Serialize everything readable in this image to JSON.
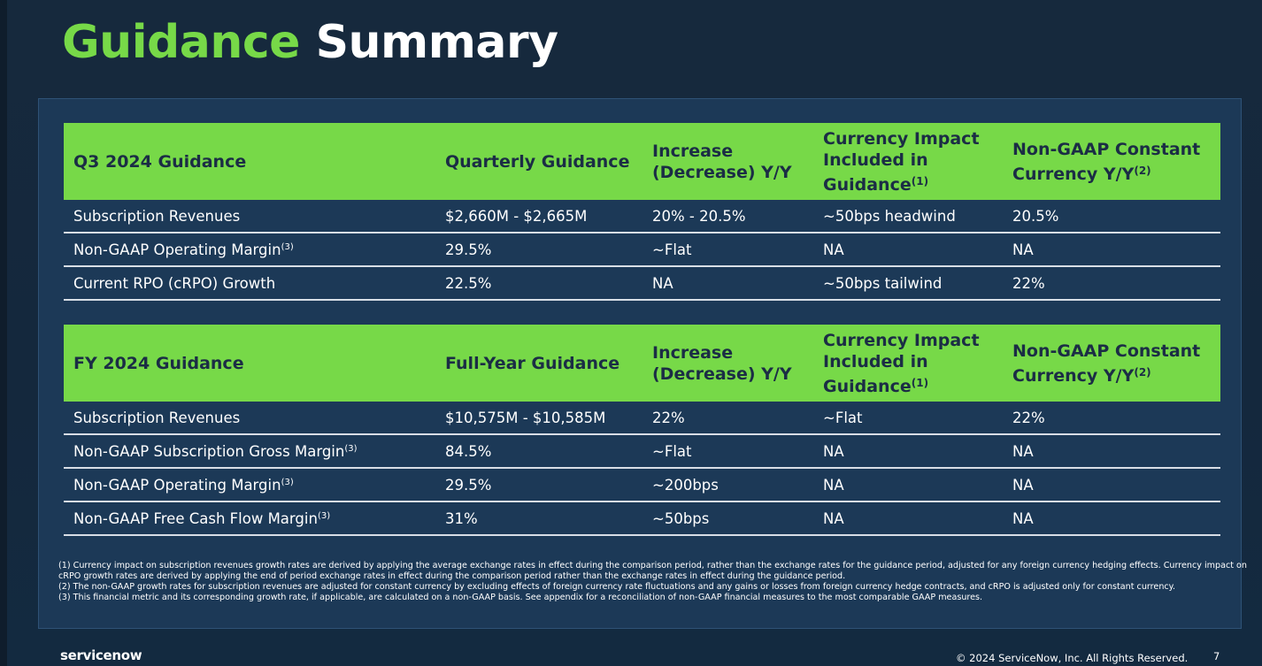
{
  "title": {
    "green": "Guidance",
    "white": "Summary"
  },
  "q3": {
    "headers": [
      {
        "text": "Q3 2024 Guidance",
        "sup": ""
      },
      {
        "text": "Quarterly Guidance",
        "sup": ""
      },
      {
        "text": "Increase (Decrease) Y/Y",
        "sup": ""
      },
      {
        "text": "Currency Impact Included in Guidance",
        "sup": "(1)"
      },
      {
        "text": "Non-GAAP Constant Currency Y/Y",
        "sup": "(2)"
      }
    ],
    "rows": [
      {
        "label": "Subscription Revenues",
        "sup": "",
        "cells": [
          "$2,660M - $2,665M",
          "20% - 20.5%",
          "~50bps headwind",
          "20.5%"
        ]
      },
      {
        "label": "Non-GAAP Operating Margin",
        "sup": "(3)",
        "cells": [
          "29.5%",
          "~Flat",
          "NA",
          "NA"
        ]
      },
      {
        "label": "Current RPO (cRPO) Growth",
        "sup": "",
        "cells": [
          "22.5%",
          "NA",
          "~50bps tailwind",
          "22%"
        ]
      }
    ]
  },
  "fy": {
    "headers": [
      {
        "text": "FY 2024 Guidance",
        "sup": ""
      },
      {
        "text": "Full-Year Guidance",
        "sup": ""
      },
      {
        "text": "Increase (Decrease) Y/Y",
        "sup": ""
      },
      {
        "text": "Currency Impact Included in Guidance",
        "sup": "(1)"
      },
      {
        "text": "Non-GAAP Constant Currency Y/Y",
        "sup": "(2)"
      }
    ],
    "rows": [
      {
        "label": "Subscription Revenues",
        "sup": "",
        "cells": [
          "$10,575M - $10,585M",
          "22%",
          "~Flat",
          "22%"
        ]
      },
      {
        "label": "Non-GAAP Subscription Gross Margin",
        "sup": "(3)",
        "cells": [
          "84.5%",
          "~Flat",
          "NA",
          "NA"
        ]
      },
      {
        "label": "Non-GAAP Operating Margin",
        "sup": "(3)",
        "cells": [
          "29.5%",
          "~200bps",
          "NA",
          "NA"
        ]
      },
      {
        "label": "Non-GAAP Free Cash Flow Margin",
        "sup": "(3)",
        "cells": [
          "31%",
          "~50bps",
          "NA",
          "NA"
        ]
      }
    ]
  },
  "notes": [
    "(1) Currency impact on subscription revenues growth rates are derived by applying the average exchange rates in effect during the comparison period, rather than the exchange rates for the guidance period, adjusted for any foreign currency hedging effects. Currency impact on cRPO growth rates are derived by applying the end of period exchange rates in effect during the comparison period rather than the exchange rates in effect during the guidance period.",
    "(2) The non-GAAP growth rates for subscription revenues are adjusted for constant currency by excluding effects of foreign currency rate fluctuations and any gains or losses from foreign currency hedge contracts, and cRPO is adjusted only for constant currency.",
    "(3) This financial metric and its corresponding growth rate, if applicable, are calculated on a non-GAAP basis. See appendix for a reconciliation of non-GAAP financial measures to the most comparable GAAP measures."
  ],
  "footer": {
    "logo": "servicenow",
    "copyright": "© 2024 ServiceNow, Inc. All Rights Reserved.",
    "page": "7"
  }
}
